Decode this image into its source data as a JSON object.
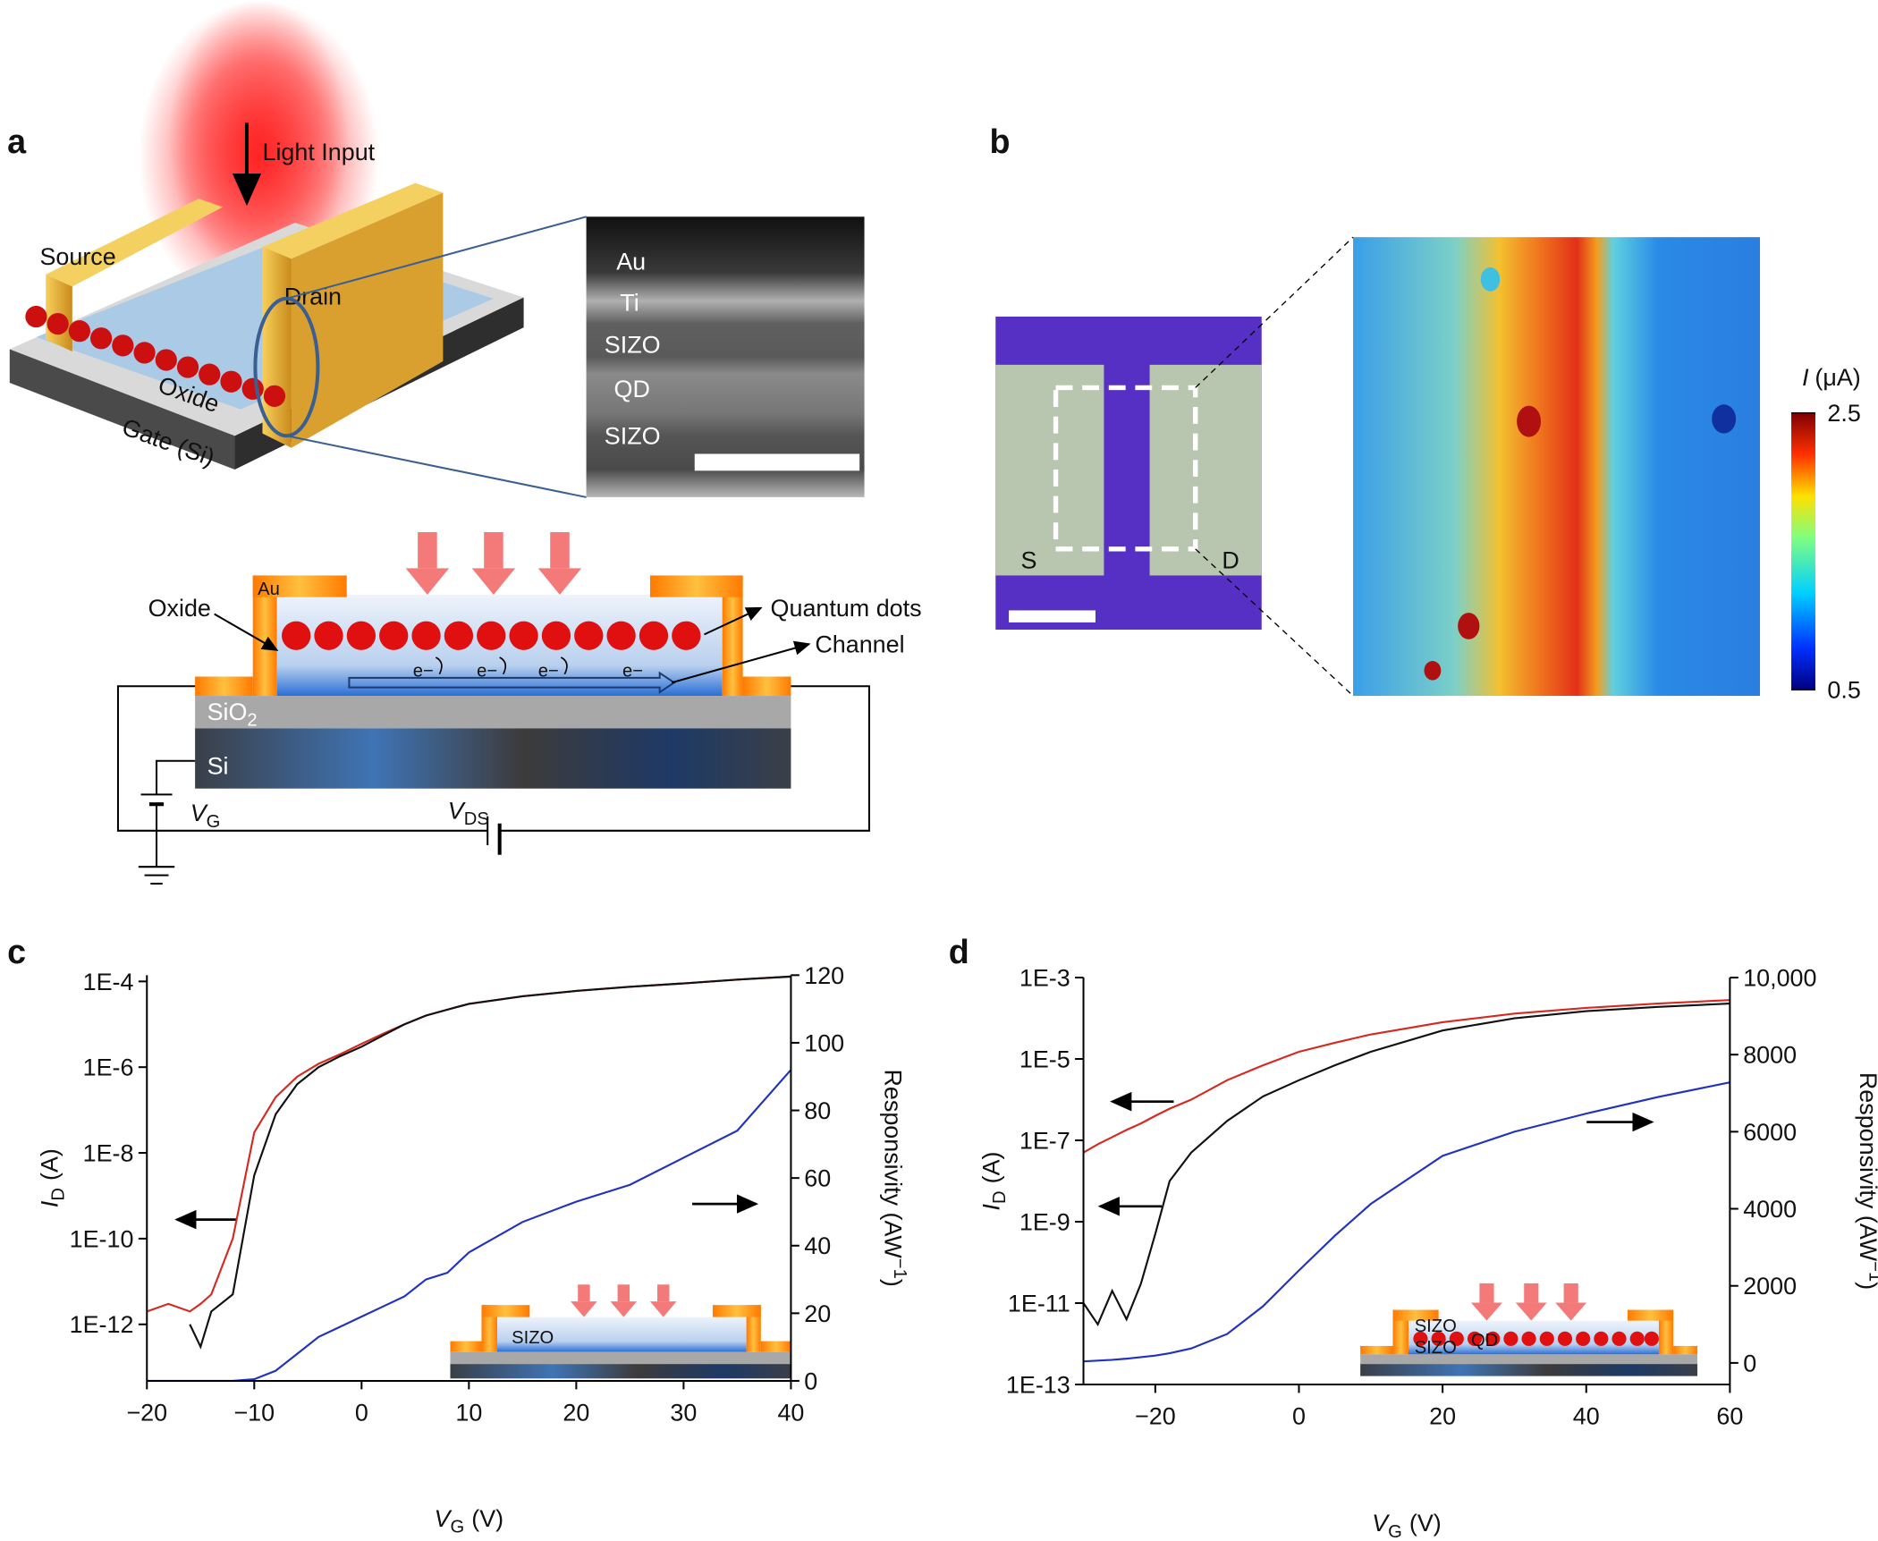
{
  "panels": {
    "a": {
      "label": "a",
      "light_input": "Light Input",
      "source": "Source",
      "drain": "Drain",
      "oxide": "Oxide",
      "gate": "Gate (Si)",
      "tem_layers": [
        "Au",
        "Ti",
        "SIZO",
        "QD",
        "SIZO"
      ],
      "schematic": {
        "au": "Au",
        "oxide": "Oxide",
        "quantum_dots": "Quantum dots",
        "channel": "Channel",
        "electrons": [
          "e−",
          "e−",
          "e−",
          "e−"
        ],
        "sio2": [
          "SiO",
          "2"
        ],
        "si": "Si",
        "vg": [
          "V",
          "G"
        ],
        "vds": [
          "V",
          "DS"
        ]
      }
    },
    "b": {
      "label": "b",
      "source": "S",
      "drain": "D",
      "colorbar_label": [
        "I",
        "(μA)"
      ],
      "colorbar_max": 2.5,
      "colorbar_min": 0.5
    },
    "c": {
      "label": "c",
      "inset": [
        "SIZO"
      ]
    },
    "d": {
      "label": "d",
      "inset": [
        "SIZO",
        "QD",
        "SIZO"
      ]
    }
  },
  "chart_data": [
    {
      "type": "line",
      "x_label": [
        "V",
        "G",
        "(V)"
      ],
      "y_label": [
        "I",
        "D",
        "(A)"
      ],
      "y2_label": [
        "Responsivity (AW",
        "−1",
        ")"
      ],
      "x": [
        -20,
        -18,
        -16,
        -15,
        -14,
        -12,
        -10,
        -8,
        -6,
        -4,
        -2,
        0,
        2,
        4,
        6,
        8,
        10,
        15,
        20,
        25,
        30,
        35,
        40
      ],
      "xlim": [
        -20,
        40
      ],
      "xticks": [
        {
          "value": -20,
          "label": "−20"
        },
        {
          "value": -10,
          "label": "−10"
        },
        0,
        10,
        20,
        30,
        40
      ],
      "y_log": true,
      "ylim": [
        4.8e-14,
        0.00014
      ],
      "yticks": [
        {
          "value": 0.0001,
          "label": "1E-4"
        },
        {
          "value": 1e-06,
          "label": "1E-6"
        },
        {
          "value": 1e-08,
          "label": "1E-8"
        },
        {
          "value": 1e-10,
          "label": "1E-10"
        },
        {
          "value": 1e-12,
          "label": "1E-12"
        }
      ],
      "y2lim": [
        0,
        120
      ],
      "y2ticks": [
        0,
        20,
        40,
        60,
        80,
        100,
        120
      ],
      "series": [
        {
          "color": "#d42a22",
          "values": [
            2e-12,
            3e-12,
            2e-12,
            3e-12,
            5e-12,
            1e-10,
            3e-08,
            2e-07,
            6e-07,
            1.2e-06,
            2e-06,
            3.5e-06,
            6e-06,
            1e-05,
            1.6e-05,
            2.2e-05,
            3e-05,
            4.5e-05,
            6e-05,
            7.5e-05,
            9e-05,
            0.00011,
            0.00013
          ]
        },
        {
          "color": "#111111",
          "values": [
            null,
            null,
            1e-12,
            3e-13,
            2e-12,
            5e-12,
            3e-09,
            8e-08,
            4e-07,
            1e-06,
            1.8e-06,
            3e-06,
            5.5e-06,
            1e-05,
            1.6e-05,
            2.2e-05,
            3e-05,
            4.5e-05,
            6e-05,
            7.5e-05,
            9e-05,
            0.00011,
            0.00013
          ]
        },
        {
          "color": "#2233bb",
          "axis": "y2",
          "values": [
            0,
            0,
            0,
            0,
            0,
            0,
            0.5,
            3,
            8,
            13,
            16,
            19,
            22,
            25,
            30,
            32,
            38,
            47,
            53,
            58,
            66,
            74,
            92
          ]
        }
      ]
    },
    {
      "type": "line",
      "x_label": [
        "V",
        "G",
        "(V)"
      ],
      "y_label": [
        "I",
        "D",
        "(A)"
      ],
      "y2_label": [
        "Responsivity (AW",
        "−1",
        ")"
      ],
      "x": [
        -30,
        -28,
        -26,
        -24,
        -22,
        -20,
        -18,
        -15,
        -10,
        -5,
        0,
        5,
        10,
        20,
        30,
        40,
        50,
        60
      ],
      "xlim": [
        -30,
        60
      ],
      "xticks": [
        {
          "value": -20,
          "label": "−20"
        },
        0,
        20,
        40,
        60
      ],
      "y_log": true,
      "ylim": [
        1e-13,
        0.001
      ],
      "yticks": [
        {
          "value": 0.001,
          "label": "1E-3"
        },
        {
          "value": 1e-05,
          "label": "1E-5"
        },
        {
          "value": 1e-07,
          "label": "1E-7"
        },
        {
          "value": 1e-09,
          "label": "1E-9"
        },
        {
          "value": 1e-11,
          "label": "1E-11"
        },
        {
          "value": 1e-13,
          "label": "1E-13"
        }
      ],
      "y2lim": [
        -560,
        10000
      ],
      "y2ticks": [
        0,
        2000,
        4000,
        6000,
        8000,
        {
          "value": 10000,
          "label": "10,000"
        }
      ],
      "series": [
        {
          "color": "#d42a22",
          "values": [
            5e-08,
            8e-08,
            1.2e-07,
            1.8e-07,
            2.6e-07,
            4e-07,
            6e-07,
            1e-06,
            3e-06,
            7e-06,
            1.5e-05,
            2.5e-05,
            4e-05,
            8e-05,
            0.00013,
            0.00018,
            0.00023,
            0.00028
          ]
        },
        {
          "color": "#111111",
          "values": [
            1e-11,
            3e-12,
            2e-11,
            4e-12,
            3e-11,
            5e-10,
            1e-08,
            5e-08,
            3e-07,
            1.2e-06,
            3e-06,
            7e-06,
            1.5e-05,
            5e-05,
            0.0001,
            0.00015,
            0.00019,
            0.00023
          ]
        },
        {
          "color": "#2233bb",
          "axis": "y2",
          "values": [
            40,
            60,
            80,
            110,
            150,
            190,
            250,
            375,
            750,
            1470,
            2400,
            3300,
            4125,
            5375,
            6000,
            6470,
            6900,
            7280
          ]
        }
      ]
    }
  ]
}
